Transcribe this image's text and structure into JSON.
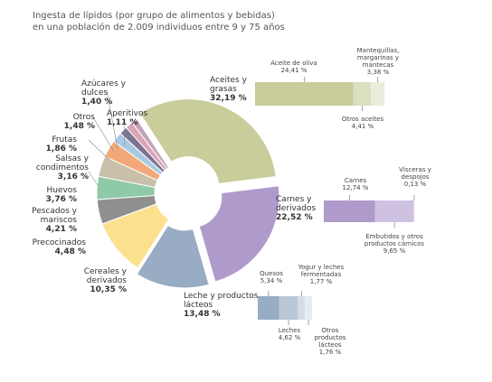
{
  "chart_data": {
    "type": "donut",
    "title": "Ingesta de lípidos (por grupo de alimentos y bebidas)",
    "subtitle": "en una población de 2.009 individuos entre 9 y 75 años",
    "categories": [
      "Aceites y grasas",
      "Carnes y derivados",
      "Leche y productos lácteos",
      "Cereales y derivados",
      "Precocinados",
      "Pescados y mariscos",
      "Huevos",
      "Salsas y condimentos",
      "Frutas",
      "Otros",
      "Azúcares y dulces",
      "Aperitivos"
    ],
    "values": [
      32.19,
      22.52,
      13.48,
      10.35,
      4.48,
      4.21,
      3.76,
      3.16,
      1.86,
      1.48,
      1.4,
      1.11
    ],
    "value_labels": [
      "32,19 %",
      "22,52 %",
      "13,48 %",
      "10,35 %",
      "4,48 %",
      "4,21 %",
      "3,76 %",
      "3,16 %",
      "1,86 %",
      "1,48 %",
      "1,40 %",
      "1,11 %"
    ],
    "colors": [
      "#c9cc9b",
      "#af9bcb",
      "#98acc3",
      "#fbe08e",
      "#8f8f8f",
      "#8fcaa8",
      "#c8c0a8",
      "#f2a97a",
      "#a8cbe4",
      "#7b7390",
      "#dba3b8",
      "#c4a2b8"
    ],
    "breakdowns": [
      {
        "categories": [
          "Aceite de oliva",
          "Otros aceites",
          "Mantequillas, margarinas y mantecas"
        ],
        "values": [
          24.41,
          4.41,
          3.38
        ],
        "value_labels": [
          "24,41 %",
          "4,41 %",
          "3,38 %"
        ],
        "colors": [
          "#c9cc9b",
          "#dcdfc1",
          "#ebedda"
        ]
      },
      {
        "categories": [
          "Carnes",
          "Embutidos y otros productos cárnicos",
          "Vísceras y despojos"
        ],
        "values": [
          12.74,
          9.65,
          0.13
        ],
        "value_labels": [
          "12,74 %",
          "9,65 %",
          "0,13 %"
        ],
        "colors": [
          "#af9bcb",
          "#cfc2e1",
          "#e9e1f1"
        ]
      },
      {
        "categories": [
          "Quesos",
          "Leches",
          "Yogur y leches fermentadas",
          "Otros productos lácteos"
        ],
        "values": [
          5.34,
          4.62,
          1.77,
          1.76
        ],
        "value_labels": [
          "5,34 %",
          "4,62 %",
          "1,77 %",
          "1,76 %"
        ],
        "colors": [
          "#98acc3",
          "#b9c7d6",
          "#d4dde7",
          "#e6ebf1"
        ]
      }
    ]
  }
}
